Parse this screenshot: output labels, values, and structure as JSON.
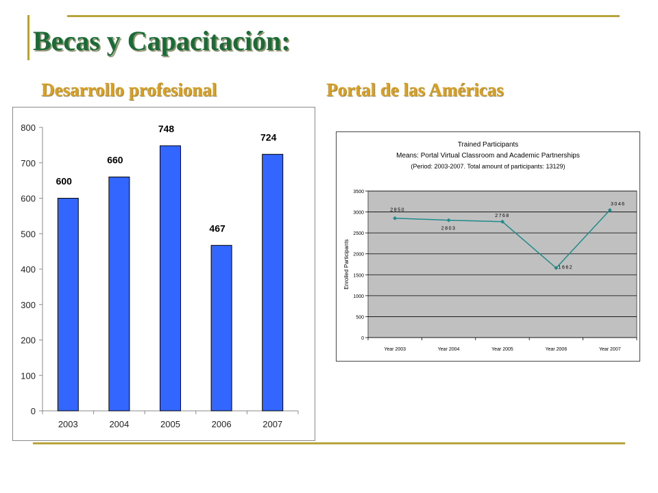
{
  "slide": {
    "title": "Becas y Capacitación:",
    "subtitle_left": "Desarrollo profesional",
    "subtitle_right": "Portal de las Américas"
  },
  "chart_data": [
    {
      "type": "bar",
      "categories": [
        "2003",
        "2004",
        "2005",
        "2006",
        "2007"
      ],
      "values": [
        600,
        660,
        748,
        467,
        724
      ],
      "data_labels": [
        "600",
        "660",
        "748",
        "467",
        "724"
      ],
      "title": "",
      "xlabel": "",
      "ylabel": "",
      "ylim": [
        0,
        800
      ],
      "yticks": [
        "0",
        "100",
        "200",
        "300",
        "400",
        "500",
        "600",
        "700",
        "800"
      ],
      "bar_color": "#3366ff",
      "grid": false
    },
    {
      "type": "line",
      "title": "Trained Participants",
      "subtitle": "Means: Portal Virtual Classroom and Academic Partnerships",
      "note": "(Period: 2003-2007. Total amount of participants: 13129)",
      "categories": [
        "Year 2003",
        "Year 2004",
        "Year 2005",
        "Year 2006",
        "Year 2007"
      ],
      "values": [
        2850,
        2803,
        2768,
        1662,
        3046
      ],
      "data_labels": [
        "2850",
        "2803",
        "2768",
        "1662",
        "3046"
      ],
      "xlabel": "",
      "ylabel": "Enrolled Participants",
      "ylim": [
        0,
        3500
      ],
      "yticks": [
        "0",
        "500",
        "1000",
        "1500",
        "2000",
        "2500",
        "3000",
        "3500"
      ],
      "line_color": "#1f8a8a",
      "plot_background": "#c0c0c0",
      "grid": true
    }
  ]
}
